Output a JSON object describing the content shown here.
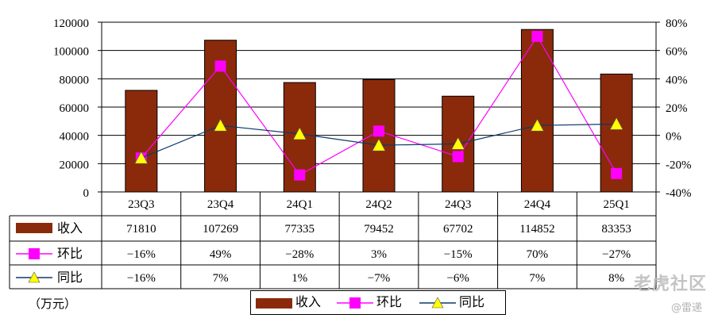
{
  "chart_data": {
    "type": "bar",
    "categories": [
      "23Q3",
      "23Q4",
      "24Q1",
      "24Q2",
      "24Q3",
      "24Q4",
      "25Q1"
    ],
    "y_left": {
      "ticks": [
        0,
        20000,
        40000,
        60000,
        80000,
        100000,
        120000
      ],
      "ylim": [
        0,
        120000
      ]
    },
    "y_right": {
      "ticks": [
        "-40%",
        "-20%",
        "0%",
        "20%",
        "40%",
        "60%",
        "80%"
      ],
      "ylim": [
        -40,
        80
      ]
    },
    "grid": true,
    "series": [
      {
        "name": "收入",
        "kind": "bar",
        "axis": "left",
        "color": "#8B2A0A",
        "values": [
          71810,
          107269,
          77335,
          79452,
          67702,
          114852,
          83353
        ],
        "labels": [
          "71810",
          "107269",
          "77335",
          "79452",
          "67702",
          "114852",
          "83353"
        ]
      },
      {
        "name": "环比",
        "kind": "line",
        "axis": "right",
        "color": "#FF00FF",
        "marker": "square",
        "values": [
          -16,
          49,
          -28,
          3,
          -15,
          70,
          -27
        ],
        "labels": [
          "−16%",
          "49%",
          "−28%",
          "3%",
          "−15%",
          "70%",
          "−27%"
        ]
      },
      {
        "name": "同比",
        "kind": "line",
        "axis": "right",
        "color": "#0B3A6B",
        "marker": "triangle",
        "marker_color": "#FFFF00",
        "values": [
          -16,
          7,
          1,
          -7,
          -6,
          7,
          8
        ],
        "labels": [
          "−16%",
          "7%",
          "1%",
          "−7%",
          "−6%",
          "7%",
          "8%"
        ]
      }
    ],
    "unit_label": "（万元）",
    "legend_placement": "bottom"
  },
  "watermark": {
    "text": "老虎社区",
    "sub": "@雷递"
  }
}
